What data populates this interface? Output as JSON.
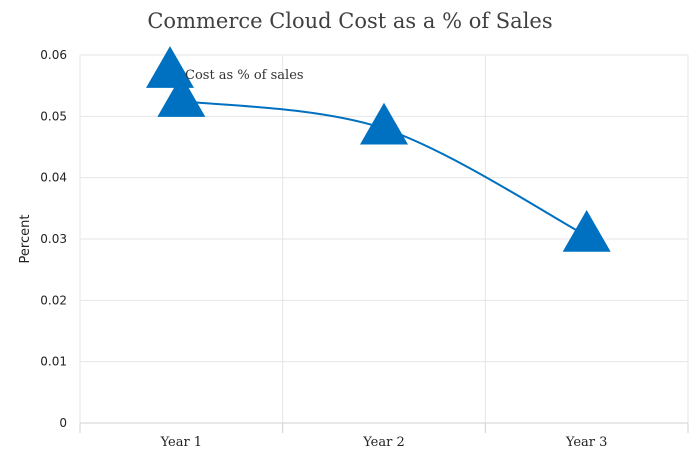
{
  "chart_data": {
    "type": "line",
    "title": "Commerce Cloud Cost as a % of Sales",
    "xlabel": "",
    "ylabel": "Percent",
    "categories": [
      "Year 1",
      "Year 2",
      "Year 3"
    ],
    "series": [
      {
        "name": "Cost as % of sales",
        "values": [
          0.0525,
          0.048,
          0.0305
        ],
        "color": "#0070c0",
        "marker": "triangle"
      }
    ],
    "ylim": [
      0,
      0.06
    ],
    "yticks": [
      "0",
      "0.01",
      "0.02",
      "0.03",
      "0.04",
      "0.05",
      "0.06"
    ],
    "grid": true,
    "legend": "top-left"
  }
}
